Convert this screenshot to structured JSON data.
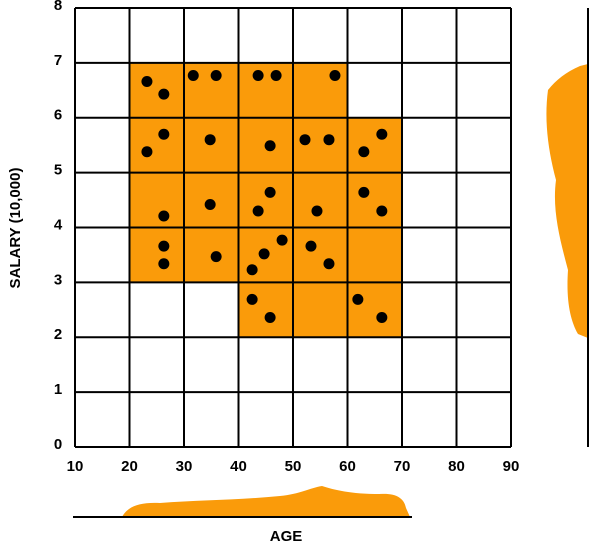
{
  "chart_data": {
    "type": "scatter",
    "x_label": "AGE",
    "y_label": "SALARY (10,000)",
    "x": [
      23.2,
      26.3,
      31.7,
      35.9,
      43.6,
      46.9,
      57.7,
      26.3,
      23.2,
      34.8,
      45.8,
      52.2,
      56.6,
      66.3,
      63.0,
      45.8,
      63.0,
      34.8,
      26.3,
      43.6,
      54.4,
      66.3,
      48.0,
      26.3,
      53.3,
      44.7,
      35.9,
      26.3,
      56.6,
      42.5,
      42.5,
      61.9,
      45.8,
      66.3
    ],
    "values": [
      6.66,
      6.43,
      6.77,
      6.77,
      6.77,
      6.77,
      6.77,
      5.7,
      5.38,
      5.6,
      5.49,
      5.6,
      5.6,
      5.7,
      5.38,
      4.64,
      4.64,
      4.42,
      4.21,
      4.3,
      4.3,
      4.3,
      3.77,
      3.66,
      3.66,
      3.52,
      3.47,
      3.34,
      3.34,
      3.23,
      2.69,
      2.69,
      2.36,
      2.36
    ],
    "color": "#000000",
    "regions": [
      [
        20,
        60,
        3,
        7
      ],
      [
        60,
        70,
        3,
        6
      ],
      [
        40,
        70,
        2,
        3
      ]
    ],
    "region_color": "#fa9b0a",
    "xlim": [
      10,
      90
    ],
    "ylim": [
      0,
      8
    ],
    "xticks": [
      10,
      20,
      30,
      40,
      50,
      60,
      70,
      80,
      90
    ],
    "yticks": [
      0,
      1,
      2,
      3,
      4,
      5,
      6,
      7,
      8
    ],
    "grid": true
  }
}
